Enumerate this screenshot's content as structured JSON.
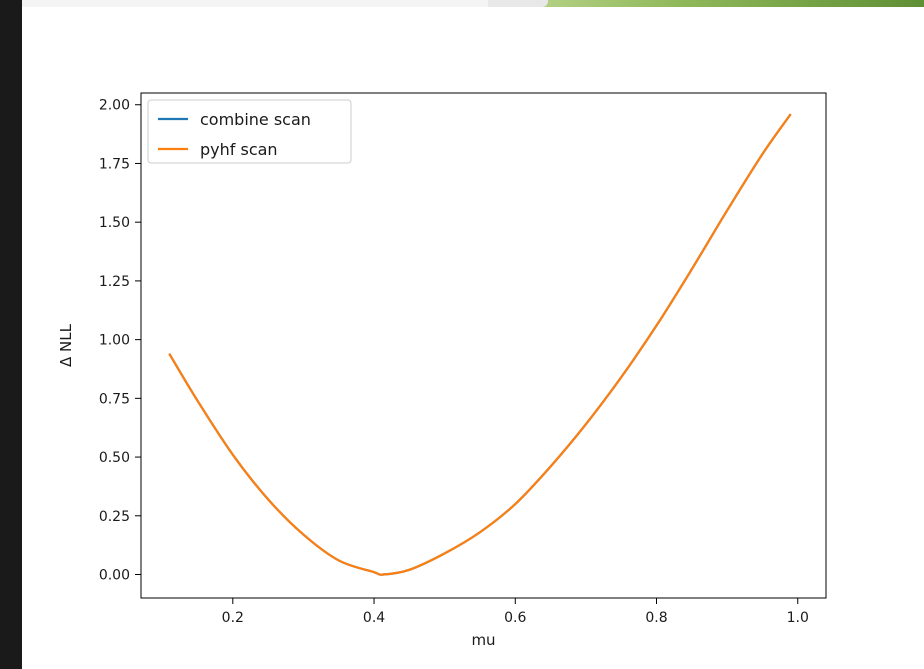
{
  "chart_data": {
    "type": "line",
    "title": "",
    "xlabel": "mu",
    "ylabel": "Δ NLL",
    "xlim": [
      0.07,
      1.04
    ],
    "ylim": [
      -0.1,
      2.05
    ],
    "xticks": [
      0.2,
      0.4,
      0.6,
      0.8,
      1.0
    ],
    "xtick_labels": [
      "0.2",
      "0.4",
      "0.6",
      "0.8",
      "1.0"
    ],
    "yticks": [
      0.0,
      0.25,
      0.5,
      0.75,
      1.0,
      1.25,
      1.5,
      1.75,
      2.0
    ],
    "ytick_labels": [
      "0.00",
      "0.25",
      "0.50",
      "0.75",
      "1.00",
      "1.25",
      "1.50",
      "1.75",
      "2.00"
    ],
    "grid": false,
    "legend_position": "top-left",
    "series": [
      {
        "name": "combine scan",
        "color": "#1f77b4",
        "x": [
          0.11,
          0.15,
          0.2,
          0.25,
          0.3,
          0.35,
          0.4,
          0.413,
          0.45,
          0.5,
          0.55,
          0.6,
          0.65,
          0.7,
          0.75,
          0.8,
          0.85,
          0.9,
          0.95,
          0.99
        ],
        "y": [
          0.94,
          0.74,
          0.51,
          0.32,
          0.17,
          0.06,
          0.01,
          0.0,
          0.02,
          0.09,
          0.18,
          0.3,
          0.46,
          0.64,
          0.84,
          1.06,
          1.3,
          1.55,
          1.79,
          1.96
        ]
      },
      {
        "name": "pyhf scan",
        "color": "#ff7f0e",
        "x": [
          0.11,
          0.15,
          0.2,
          0.25,
          0.3,
          0.35,
          0.4,
          0.413,
          0.45,
          0.5,
          0.55,
          0.6,
          0.65,
          0.7,
          0.75,
          0.8,
          0.85,
          0.9,
          0.95,
          0.99
        ],
        "y": [
          0.94,
          0.74,
          0.51,
          0.32,
          0.17,
          0.06,
          0.01,
          0.0,
          0.02,
          0.09,
          0.18,
          0.3,
          0.46,
          0.64,
          0.84,
          1.06,
          1.3,
          1.55,
          1.79,
          1.96
        ]
      }
    ]
  }
}
